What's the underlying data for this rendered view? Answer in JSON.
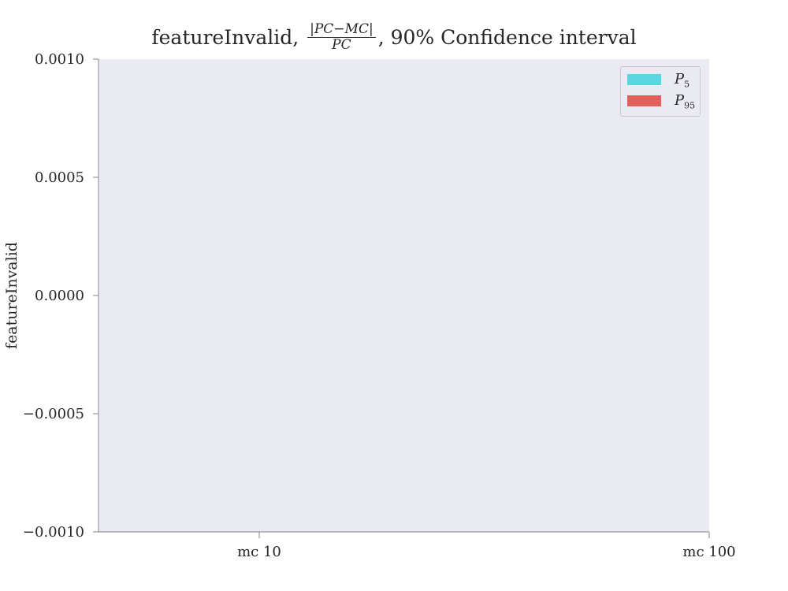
{
  "chart_data": {
    "type": "bar",
    "title_prefix": "featureInvalid,",
    "title_fraction_numerator": "|PC−MC|",
    "title_fraction_denominator": "PC",
    "title_suffix": ", 90% Confidence interval",
    "ylabel": "featureInvalid",
    "xlabel": "",
    "categories": [
      "mc 10",
      "mc 100"
    ],
    "ylim": [
      -0.001,
      0.001
    ],
    "yticks": [
      {
        "value": 0.001,
        "label": "0.0010"
      },
      {
        "value": 0.0005,
        "label": "0.0005"
      },
      {
        "value": 0.0,
        "label": "0.0000"
      },
      {
        "value": -0.0005,
        "label": "−0.0005"
      },
      {
        "value": -0.001,
        "label": "−0.0010"
      }
    ],
    "series": [
      {
        "name": "P",
        "subscript": "5",
        "color": "#5bd5e0",
        "values": [
          null,
          null
        ]
      },
      {
        "name": "P",
        "subscript": "95",
        "color": "#e0605b",
        "values": [
          null,
          null
        ]
      }
    ],
    "grid": false,
    "legend_position": "top-right",
    "plot_background": "#eaeaf2"
  }
}
